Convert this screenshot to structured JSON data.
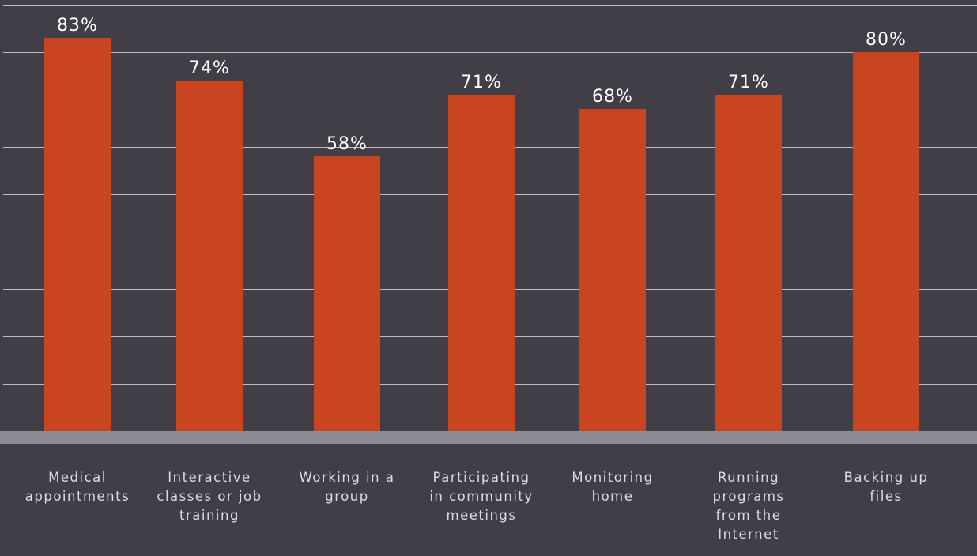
{
  "colors": {
    "background": "#413e48",
    "bar": "#c94421",
    "gridline": "#bdbcc4",
    "baseline": "#8c8a94",
    "text": "#ffffff",
    "category_text": "#dcdce2"
  },
  "chart_data": {
    "type": "bar",
    "title": "",
    "xlabel": "",
    "ylabel": "",
    "ylim": [
      0,
      90
    ],
    "grid": true,
    "legend": "none",
    "categories": [
      "Medical appointments",
      "Interactive classes or job training",
      "Working in a group",
      "Participating in community meetings",
      "Monitoring home",
      "Running programs from the Internet",
      "Backing up files"
    ],
    "category_display_lines": [
      "Medical\nappointments",
      "Interactive\nclasses or job\ntraining",
      "Working in a\ngroup",
      "Participating\nin community\nmeetings",
      "Monitoring\nhome",
      "Running\nprograms\nfrom the\nInternet",
      "Backing up\nfiles"
    ],
    "values": [
      83,
      74,
      58,
      71,
      68,
      71,
      80
    ],
    "data_labels": [
      "83%",
      "74%",
      "58%",
      "71%",
      "68%",
      "71%",
      "80%"
    ]
  }
}
